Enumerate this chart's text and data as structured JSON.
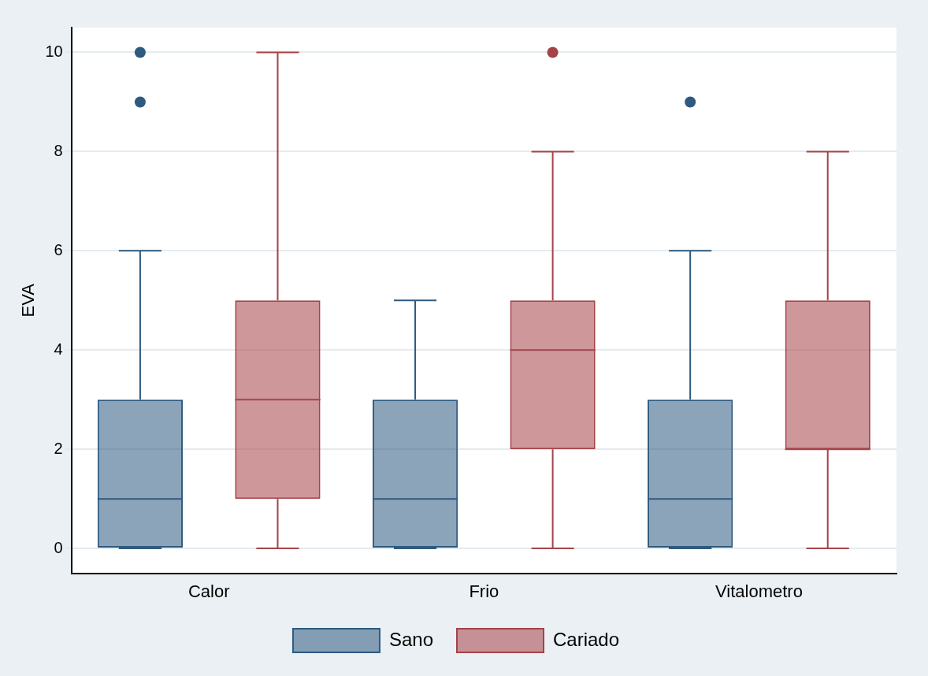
{
  "chart_data": {
    "type": "box",
    "ylabel": "EVA",
    "categories": [
      "Calor",
      "Frio",
      "Vitalometro"
    ],
    "series": [
      {
        "name": "Sano",
        "color": "#2e5a80",
        "boxes": [
          {
            "low": 0,
            "q1": 0,
            "median": 1,
            "q3": 3,
            "high": 6,
            "outliers": [
              9,
              10
            ]
          },
          {
            "low": 0,
            "q1": 0,
            "median": 1,
            "q3": 3,
            "high": 5
          },
          {
            "low": 0,
            "q1": 0,
            "median": 1,
            "q3": 3,
            "high": 6,
            "outliers": [
              9
            ]
          }
        ]
      },
      {
        "name": "Cariado",
        "color": "#a54349",
        "boxes": [
          {
            "low": 0,
            "q1": 1,
            "median": 3,
            "q3": 5,
            "high": 10
          },
          {
            "low": 0,
            "q1": 2,
            "median": 4,
            "q3": 5,
            "high": 8,
            "outliers": [
              10
            ]
          },
          {
            "low": 0,
            "q1": 2,
            "median": 2,
            "q3": 5,
            "high": 8
          }
        ]
      }
    ],
    "ylim": [
      -0.5,
      10.5
    ],
    "yticks": [
      0,
      2,
      4,
      6,
      8,
      10
    ],
    "grid": "y",
    "legend": "bottom"
  }
}
